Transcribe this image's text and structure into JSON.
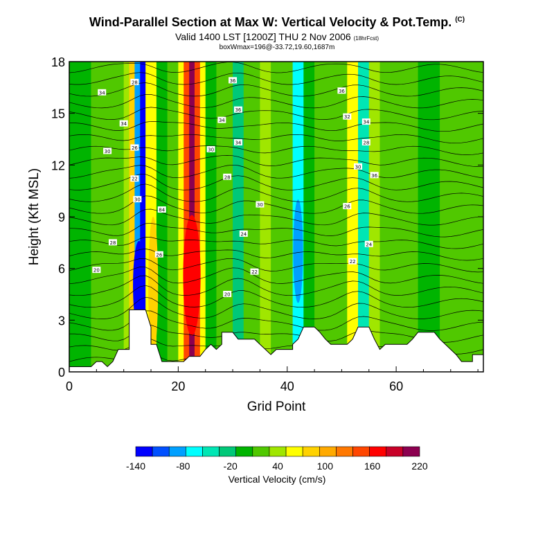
{
  "header": {
    "title": "Wind-Parallel Section at Max W: Vertical Velocity & Pot.Temp.",
    "title_mark": "(C)",
    "valid": "Valid 1400 LST [1200Z] THU 2 Nov 2006",
    "valid_note": "(18hrFcst)",
    "box_info": "boxWmax=196@-33.72,19.60,1687m"
  },
  "chart_data": {
    "type": "heatmap",
    "xlabel": "Grid Point",
    "ylabel": "Height (Kft MSL)",
    "xlim": [
      0,
      76
    ],
    "ylim": [
      0,
      18
    ],
    "x_ticks": [
      0,
      20,
      40,
      60
    ],
    "y_ticks": [
      0,
      3,
      6,
      9,
      12,
      15,
      18
    ],
    "x_tick_labels": [
      "0",
      "20",
      "40",
      "60"
    ],
    "y_tick_labels": [
      "0",
      "3",
      "6",
      "9",
      "12",
      "15",
      "18"
    ],
    "colorbar": {
      "label": "Vertical Velocity (cm/s)",
      "tick_labels": [
        "-140",
        "-80",
        "-20",
        "40",
        "100",
        "160",
        "220"
      ],
      "colors": [
        "#0000ff",
        "#0050ff",
        "#00a0ff",
        "#00ffff",
        "#00e6b4",
        "#00c878",
        "#00b400",
        "#50c800",
        "#a0e600",
        "#ffff00",
        "#ffd200",
        "#ffaa00",
        "#ff7800",
        "#ff4600",
        "#ff0000",
        "#c80028",
        "#8c0050"
      ]
    },
    "vertical_velocity_bands": [
      {
        "x": [
          0,
          4
        ],
        "w": -5
      },
      {
        "x": [
          4,
          7
        ],
        "w": 5
      },
      {
        "x": [
          7,
          10
        ],
        "w": 15
      },
      {
        "x": [
          10,
          11
        ],
        "w": 30
      },
      {
        "x": [
          11,
          12
        ],
        "w": 60
      },
      {
        "x": [
          12,
          13
        ],
        "w": -100
      },
      {
        "x": [
          13,
          14
        ],
        "w": -130
      },
      {
        "x": [
          14,
          15
        ],
        "w": 40
      },
      {
        "x": [
          15,
          16
        ],
        "w": 55
      },
      {
        "x": [
          16,
          18
        ],
        "w": -10
      },
      {
        "x": [
          18,
          20
        ],
        "w": 10
      },
      {
        "x": [
          20,
          21
        ],
        "w": 50
      },
      {
        "x": [
          21,
          22
        ],
        "w": 120
      },
      {
        "x": [
          22,
          23
        ],
        "w": 180
      },
      {
        "x": [
          23,
          24
        ],
        "w": 130
      },
      {
        "x": [
          24,
          25
        ],
        "w": 40
      },
      {
        "x": [
          25,
          27
        ],
        "w": -10
      },
      {
        "x": [
          27,
          30
        ],
        "w": 0
      },
      {
        "x": [
          30,
          32
        ],
        "w": -40
      },
      {
        "x": [
          32,
          35
        ],
        "w": 5
      },
      {
        "x": [
          35,
          37
        ],
        "w": 30
      },
      {
        "x": [
          37,
          39
        ],
        "w": 0
      },
      {
        "x": [
          39,
          41
        ],
        "w": 10
      },
      {
        "x": [
          41,
          43
        ],
        "w": -70
      },
      {
        "x": [
          43,
          45
        ],
        "w": -20
      },
      {
        "x": [
          45,
          48
        ],
        "w": 0
      },
      {
        "x": [
          48,
          51
        ],
        "w": 15
      },
      {
        "x": [
          51,
          53
        ],
        "w": 45
      },
      {
        "x": [
          53,
          55
        ],
        "w": -50
      },
      {
        "x": [
          55,
          57
        ],
        "w": 25
      },
      {
        "x": [
          57,
          60
        ],
        "w": 5
      },
      {
        "x": [
          60,
          64
        ],
        "w": 15
      },
      {
        "x": [
          64,
          68
        ],
        "w": -5
      },
      {
        "x": [
          68,
          72
        ],
        "w": 10
      },
      {
        "x": [
          72,
          76
        ],
        "w": 0
      }
    ],
    "terrain_kft": [
      [
        0,
        0.3
      ],
      [
        4,
        0.3
      ],
      [
        5,
        0.6
      ],
      [
        6,
        0.6
      ],
      [
        7,
        0.3
      ],
      [
        8,
        0.6
      ],
      [
        9,
        1.3
      ],
      [
        11,
        1.3
      ],
      [
        11,
        3.6
      ],
      [
        14,
        3.6
      ],
      [
        15,
        2.6
      ],
      [
        15,
        1.6
      ],
      [
        16,
        1.6
      ],
      [
        17,
        0.6
      ],
      [
        18,
        0.6
      ],
      [
        21,
        0.6
      ],
      [
        22,
        0.9
      ],
      [
        23,
        0.9
      ],
      [
        24,
        0.9
      ],
      [
        25,
        1.3
      ],
      [
        26,
        1.6
      ],
      [
        27,
        1.3
      ],
      [
        28,
        1.6
      ],
      [
        28,
        2.3
      ],
      [
        30,
        2.3
      ],
      [
        31,
        1.9
      ],
      [
        34,
        1.9
      ],
      [
        35,
        1.6
      ],
      [
        36,
        1.3
      ],
      [
        37,
        1.0
      ],
      [
        38,
        1.3
      ],
      [
        41,
        1.3
      ],
      [
        41,
        1.6
      ],
      [
        42,
        1.9
      ],
      [
        43,
        2.6
      ],
      [
        45,
        2.6
      ],
      [
        46,
        2.3
      ],
      [
        47,
        1.9
      ],
      [
        48,
        1.6
      ],
      [
        51,
        1.6
      ],
      [
        52,
        1.9
      ],
      [
        53,
        2.6
      ],
      [
        55,
        2.6
      ],
      [
        56,
        1.9
      ],
      [
        57,
        1.3
      ],
      [
        58,
        1.6
      ],
      [
        62,
        1.6
      ],
      [
        63,
        1.9
      ],
      [
        64,
        2.3
      ],
      [
        67,
        2.3
      ],
      [
        68,
        1.9
      ],
      [
        70,
        1.3
      ],
      [
        71,
        1.0
      ],
      [
        72,
        0.6
      ],
      [
        74,
        0.6
      ],
      [
        74,
        1.0
      ],
      [
        76,
        1.0
      ]
    ],
    "contour_labels": [
      {
        "text": "28",
        "x": 12.0,
        "y": 16.8
      },
      {
        "text": "34",
        "x": 6.0,
        "y": 16.2
      },
      {
        "text": "34",
        "x": 10.0,
        "y": 14.4
      },
      {
        "text": "26",
        "x": 12.0,
        "y": 13.0
      },
      {
        "text": "30",
        "x": 7.0,
        "y": 12.8
      },
      {
        "text": "22",
        "x": 12.0,
        "y": 11.2
      },
      {
        "text": "30",
        "x": 12.5,
        "y": 10.0
      },
      {
        "text": "84",
        "x": 17.0,
        "y": 9.4
      },
      {
        "text": "28",
        "x": 8.0,
        "y": 7.5
      },
      {
        "text": "20",
        "x": 5.0,
        "y": 5.9
      },
      {
        "text": "26",
        "x": 16.5,
        "y": 6.8
      },
      {
        "text": "36",
        "x": 30.0,
        "y": 16.9
      },
      {
        "text": "36",
        "x": 31.0,
        "y": 15.2
      },
      {
        "text": "34",
        "x": 28.0,
        "y": 14.6
      },
      {
        "text": "34",
        "x": 31.0,
        "y": 13.3
      },
      {
        "text": "30",
        "x": 26.0,
        "y": 12.9
      },
      {
        "text": "28",
        "x": 29.0,
        "y": 11.3
      },
      {
        "text": "30",
        "x": 35.0,
        "y": 9.7
      },
      {
        "text": "24",
        "x": 32.0,
        "y": 8.0
      },
      {
        "text": "22",
        "x": 34.0,
        "y": 5.8
      },
      {
        "text": "20",
        "x": 29.0,
        "y": 4.5
      },
      {
        "text": "36",
        "x": 50.0,
        "y": 16.3
      },
      {
        "text": "32",
        "x": 51.0,
        "y": 14.8
      },
      {
        "text": "34",
        "x": 54.5,
        "y": 14.5
      },
      {
        "text": "28",
        "x": 54.5,
        "y": 13.3
      },
      {
        "text": "30",
        "x": 53.0,
        "y": 11.9
      },
      {
        "text": "36",
        "x": 56.0,
        "y": 11.4
      },
      {
        "text": "26",
        "x": 51.0,
        "y": 9.6
      },
      {
        "text": "24",
        "x": 55.0,
        "y": 7.4
      },
      {
        "text": "22",
        "x": 52.0,
        "y": 6.4
      }
    ]
  }
}
